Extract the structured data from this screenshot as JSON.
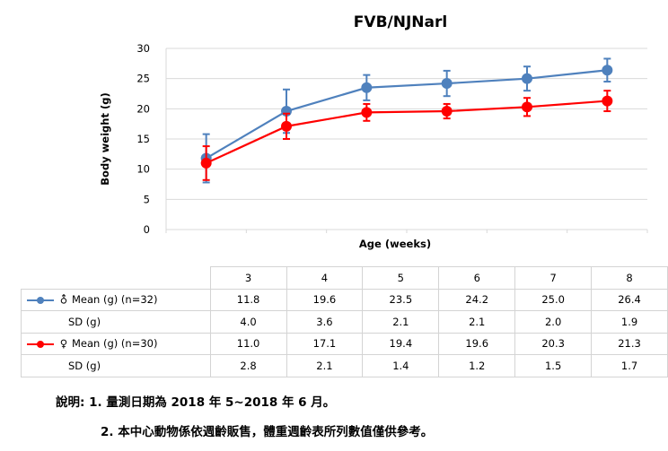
{
  "chart_data": {
    "type": "line",
    "title": "FVB/NJNarl",
    "xlabel": "Age (weeks)",
    "ylabel": "Body weight (g)",
    "ylim": [
      0,
      30
    ],
    "yticks": [
      "0",
      "5",
      "10",
      "15",
      "20",
      "25",
      "30"
    ],
    "ytick_values": [
      0,
      5,
      10,
      15,
      20,
      25,
      30
    ],
    "grid": true,
    "categories": [
      "3",
      "4",
      "5",
      "6",
      "7",
      "8"
    ],
    "series": [
      {
        "name": "♂ Mean (g) (n=32)",
        "symbol": "♂",
        "label": "Mean (g) (n=32)",
        "color": "#4F81BD",
        "values": [
          11.8,
          19.6,
          23.5,
          24.2,
          25.0,
          26.4
        ],
        "values_text": [
          "11.8",
          "19.6",
          "23.5",
          "24.2",
          "25.0",
          "26.4"
        ],
        "sd_label": "SD (g)",
        "sd": [
          4.0,
          3.6,
          2.1,
          2.1,
          2.0,
          1.9
        ],
        "sd_text": [
          "4.0",
          "3.6",
          "2.1",
          "2.1",
          "2.0",
          "1.9"
        ]
      },
      {
        "name": "♀ Mean (g) (n=30)",
        "symbol": "♀",
        "label": "Mean (g) (n=30)",
        "color": "#FF0000",
        "values": [
          11.0,
          17.1,
          19.4,
          19.6,
          20.3,
          21.3
        ],
        "values_text": [
          "11.0",
          "17.1",
          "19.4",
          "19.6",
          "20.3",
          "21.3"
        ],
        "sd_label": "SD (g)",
        "sd": [
          2.8,
          2.1,
          1.4,
          1.2,
          1.5,
          1.7
        ],
        "sd_text": [
          "2.8",
          "2.1",
          "1.4",
          "1.2",
          "1.5",
          "1.7"
        ]
      }
    ],
    "legend": "table-bottom"
  },
  "notes": {
    "line1": "說明: 1. 量測日期為 2018 年 5~2018 年 6 月。",
    "line2": "2. 本中心動物係依週齡販售，體重週齡表所列數值僅供參考。"
  }
}
